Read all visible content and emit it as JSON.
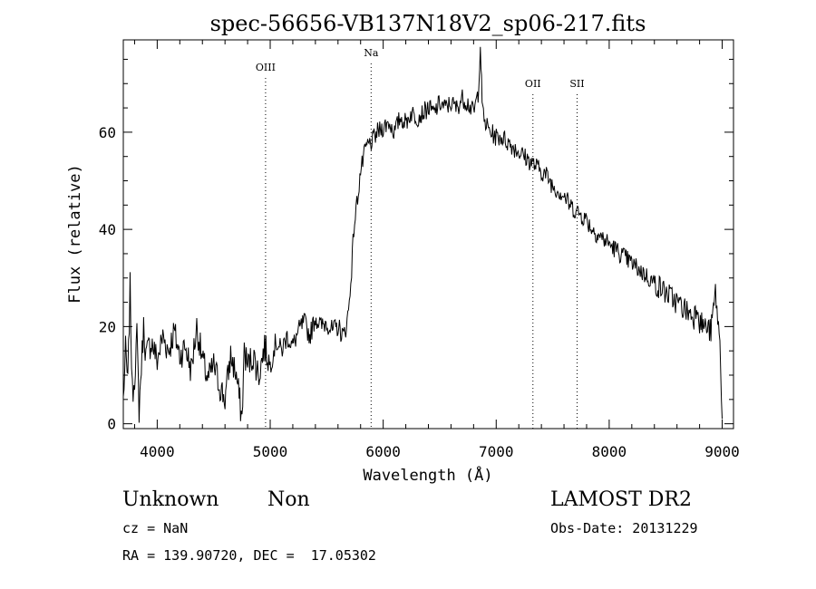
{
  "chart_data": {
    "type": "line",
    "title": "spec-56656-VB137N18V2_sp06-217.fits",
    "xlabel": "Wavelength (Å)",
    "ylabel": "Flux (relative)",
    "xlim": [
      3700,
      9100
    ],
    "ylim": [
      -1,
      79
    ],
    "xticks": [
      4000,
      5000,
      6000,
      7000,
      8000,
      9000
    ],
    "yticks": [
      0,
      20,
      40,
      60
    ],
    "grid": false,
    "lines": [
      {
        "label": "OIII",
        "x": 4959
      },
      {
        "label": "Na",
        "x": 5893
      },
      {
        "label": "OII",
        "x": 7325
      },
      {
        "label": "SII",
        "x": 7716
      }
    ],
    "series": [
      {
        "x": [
          3700,
          3720,
          3740,
          3760,
          3780,
          3800,
          3820,
          3840,
          3860,
          3880,
          3900,
          3950,
          4000,
          4050,
          4100,
          4150,
          4200,
          4250,
          4300,
          4350,
          4400,
          4450,
          4500,
          4550,
          4600,
          4650,
          4700,
          4750,
          4770,
          4800,
          4850,
          4900,
          4950,
          5000,
          5050,
          5100,
          5150,
          5200,
          5250,
          5300,
          5350,
          5400,
          5450,
          5500,
          5550,
          5600,
          5650,
          5680,
          5700,
          5720,
          5740,
          5760,
          5780,
          5800,
          5850,
          5900,
          5950,
          6000,
          6050,
          6100,
          6150,
          6200,
          6250,
          6300,
          6350,
          6400,
          6450,
          6500,
          6550,
          6600,
          6650,
          6700,
          6750,
          6800,
          6840,
          6860,
          6870,
          6880,
          6900,
          6950,
          7000,
          7050,
          7100,
          7150,
          7200,
          7250,
          7300,
          7350,
          7400,
          7450,
          7500,
          7550,
          7600,
          7650,
          7700,
          7750,
          7800,
          7850,
          7900,
          7950,
          8000,
          8050,
          8100,
          8150,
          8200,
          8250,
          8300,
          8350,
          8400,
          8450,
          8500,
          8550,
          8600,
          8650,
          8700,
          8750,
          8780,
          8800,
          8850,
          8900,
          8940,
          8960,
          8980,
          9000
        ],
        "y": [
          5,
          15,
          8,
          28,
          6,
          10,
          18,
          3,
          12,
          20,
          14,
          17,
          13,
          18,
          15,
          19,
          14,
          16,
          11,
          20,
          13,
          9,
          12,
          8,
          5,
          14,
          10,
          1,
          15,
          12,
          14,
          10,
          16,
          12,
          17,
          15,
          18,
          16,
          19,
          21,
          18,
          22,
          20,
          21,
          19,
          20,
          18,
          21,
          25,
          32,
          40,
          44,
          48,
          52,
          57,
          58,
          60,
          61,
          62,
          60,
          63,
          62,
          64,
          63,
          64,
          65,
          64,
          66,
          65,
          66,
          65,
          67,
          66,
          64,
          68,
          78,
          70,
          64,
          62,
          60,
          59,
          59,
          58,
          57,
          56,
          55,
          54,
          53,
          52,
          51,
          49,
          48,
          47,
          45,
          44,
          43,
          42,
          40,
          39,
          38,
          37,
          36,
          35,
          34,
          33,
          32,
          31,
          30,
          29,
          28,
          27,
          26,
          25,
          24,
          23,
          22,
          25,
          21,
          20,
          19,
          27,
          22,
          16,
          1
        ]
      }
    ]
  },
  "footer": {
    "class_label": "Unknown",
    "subclass_label": "Non",
    "cz": "cz = NaN",
    "coords": "RA = 139.90720, DEC =  17.05302",
    "survey": "LAMOST DR2",
    "obs_date": "Obs-Date: 20131229"
  }
}
